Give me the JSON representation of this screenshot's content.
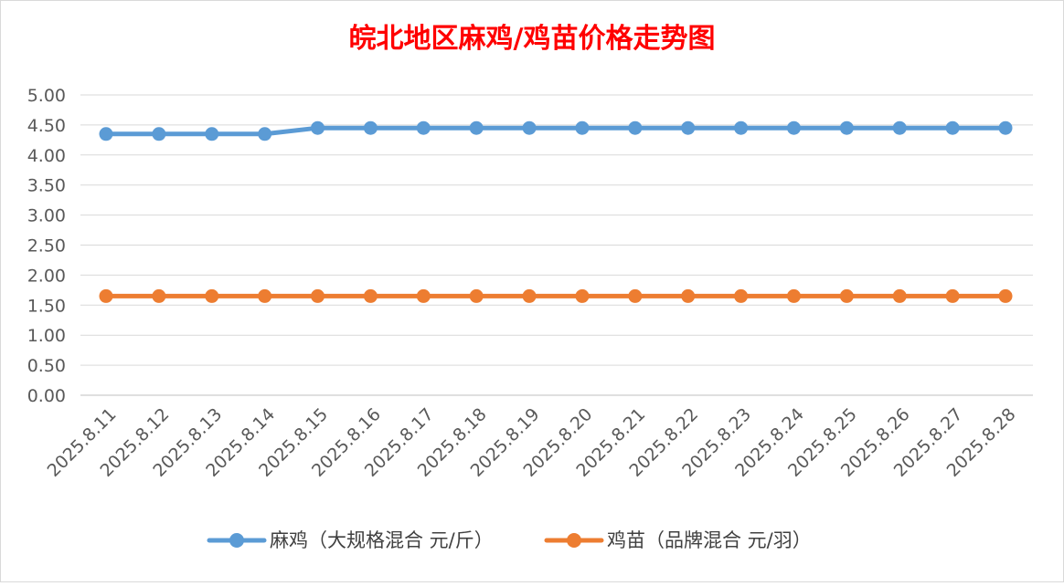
{
  "chart_data": {
    "type": "line",
    "title": "皖北地区麻鸡/鸡苗价格走势图",
    "categories": [
      "2025.8.11",
      "2025.8.12",
      "2025.8.13",
      "2025.8.14",
      "2025.8.15",
      "2025.8.16",
      "2025.8.17",
      "2025.8.18",
      "2025.8.19",
      "2025.8.20",
      "2025.8.21",
      "2025.8.22",
      "2025.8.23",
      "2025.8.24",
      "2025.8.25",
      "2025.8.26",
      "2025.8.27",
      "2025.8.28"
    ],
    "series": [
      {
        "name": "麻鸡（大规格混合 元/斤）",
        "color": "#5b9bd5",
        "values": [
          4.35,
          4.35,
          4.35,
          4.35,
          4.45,
          4.45,
          4.45,
          4.45,
          4.45,
          4.45,
          4.45,
          4.45,
          4.45,
          4.45,
          4.45,
          4.45,
          4.45,
          4.45
        ]
      },
      {
        "name": "鸡苗（品牌混合 元/羽）",
        "color": "#ed7d31",
        "values": [
          1.65,
          1.65,
          1.65,
          1.65,
          1.65,
          1.65,
          1.65,
          1.65,
          1.65,
          1.65,
          1.65,
          1.65,
          1.65,
          1.65,
          1.65,
          1.65,
          1.65,
          1.65
        ]
      }
    ],
    "yticks": [
      "0.00",
      "0.50",
      "1.00",
      "1.50",
      "2.00",
      "2.50",
      "3.00",
      "3.50",
      "4.00",
      "4.50",
      "5.00"
    ],
    "ylim": [
      0,
      5
    ],
    "xlabel": "",
    "ylabel": "",
    "grid": true,
    "legend_position": "bottom"
  }
}
